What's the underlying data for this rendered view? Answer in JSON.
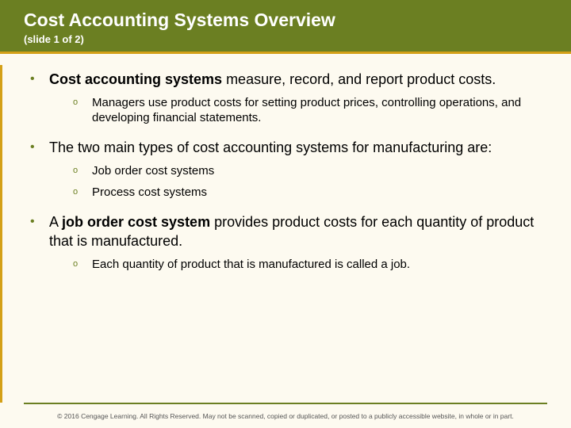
{
  "colors": {
    "header_bg": "#6b7f22",
    "accent": "#d4a017",
    "page_bg": "#fdfaf0",
    "title_text": "#ffffff",
    "body_text": "#000000",
    "bullet": "#6b7f22",
    "footer_text": "#555555"
  },
  "typography": {
    "title_fontsize": 23,
    "subtitle_fontsize": 13,
    "body_fontsize": 18,
    "sub_fontsize": 15,
    "footer_fontsize": 8.5,
    "font_family": "Arial"
  },
  "header": {
    "title": "Cost Accounting Systems Overview",
    "subtitle": "(slide 1 of 2)"
  },
  "bullets": {
    "b1": {
      "bold": "Cost accounting systems",
      "rest": " measure, record, and report product costs.",
      "subs": {
        "s1": "Managers use product costs for setting product prices, controlling operations, and developing financial statements."
      }
    },
    "b2": {
      "text": "The two main types of cost accounting systems for manufacturing are:",
      "subs": {
        "s1": "Job order cost systems",
        "s2": "Process cost systems"
      }
    },
    "b3": {
      "pre": "A ",
      "bold": "job order cost system",
      "rest": " provides product costs for each quantity of product that is manufactured.",
      "subs": {
        "s1": "Each quantity of product that is manufactured is called a job."
      }
    }
  },
  "footer": {
    "text": "© 2016 Cengage Learning. All Rights Reserved. May not be scanned, copied or duplicated, or posted to a publicly accessible website, in whole or in part."
  }
}
